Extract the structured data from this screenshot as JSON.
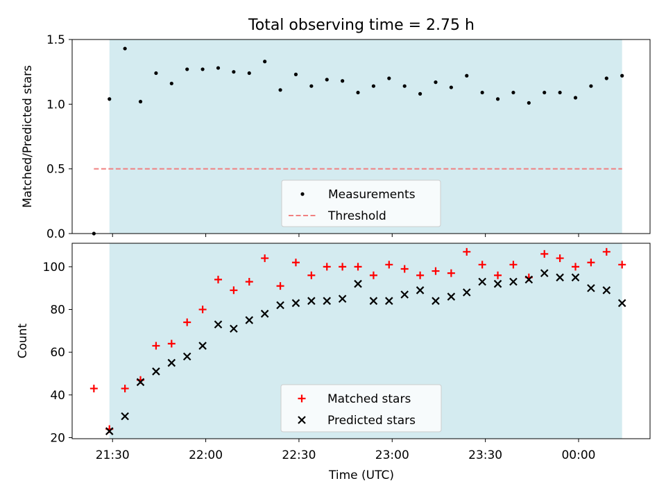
{
  "chart_data": [
    {
      "type": "scatter",
      "title": "Total observing time = 2.75 h",
      "xlabel": "",
      "ylabel": "Matched/Predicted stars",
      "xlim": [
        "21:17",
        "00:23"
      ],
      "ylim": [
        0,
        1.5
      ],
      "yticks": [
        "0.0",
        "0.5",
        "1.0",
        "1.5"
      ],
      "shaded_span": [
        "21:29",
        "00:14"
      ],
      "grid": false,
      "legend_placement": "lower-center",
      "series": [
        {
          "name": "Measurements",
          "marker": "dot",
          "color": "#000000",
          "x": [
            "21:24",
            "21:29",
            "21:34",
            "21:39",
            "21:44",
            "21:49",
            "21:54",
            "21:59",
            "22:04",
            "22:09",
            "22:14",
            "22:19",
            "22:24",
            "22:29",
            "22:34",
            "22:39",
            "22:44",
            "22:49",
            "22:54",
            "22:59",
            "23:04",
            "23:09",
            "23:14",
            "23:19",
            "23:24",
            "23:29",
            "23:34",
            "23:39",
            "23:44",
            "23:49",
            "23:54",
            "23:59",
            "00:04",
            "00:09",
            "00:14"
          ],
          "values": [
            0.0,
            1.04,
            1.43,
            1.02,
            1.24,
            1.16,
            1.27,
            1.27,
            1.28,
            1.25,
            1.24,
            1.33,
            1.11,
            1.23,
            1.14,
            1.19,
            1.18,
            1.09,
            1.14,
            1.2,
            1.14,
            1.08,
            1.17,
            1.13,
            1.22,
            1.09,
            1.04,
            1.09,
            1.01,
            1.09,
            1.09,
            1.05,
            1.14,
            1.2,
            1.22
          ]
        },
        {
          "name": "Threshold",
          "type": "line",
          "style": "dashed",
          "color": "#f08080",
          "x": [
            "21:24",
            "00:14"
          ],
          "values": [
            0.5,
            0.5
          ]
        }
      ]
    },
    {
      "type": "scatter",
      "title": "",
      "xlabel": "Time (UTC)",
      "ylabel": "Count",
      "xlim": [
        "21:17",
        "00:23"
      ],
      "ylim": [
        19.5,
        111
      ],
      "yticks": [
        "20",
        "40",
        "60",
        "80",
        "100"
      ],
      "xticks": [
        "21:30",
        "22:00",
        "22:30",
        "23:00",
        "23:30",
        "00:00"
      ],
      "shaded_span": [
        "21:29",
        "00:14"
      ],
      "grid": false,
      "legend_placement": "lower-center",
      "x": [
        "21:24",
        "21:29",
        "21:34",
        "21:39",
        "21:44",
        "21:49",
        "21:54",
        "21:59",
        "22:04",
        "22:09",
        "22:14",
        "22:19",
        "22:24",
        "22:29",
        "22:34",
        "22:39",
        "22:44",
        "22:49",
        "22:54",
        "22:59",
        "23:04",
        "23:09",
        "23:14",
        "23:19",
        "23:24",
        "23:29",
        "23:34",
        "23:39",
        "23:44",
        "23:49",
        "23:54",
        "23:59",
        "00:04",
        "00:09",
        "00:14"
      ],
      "series": [
        {
          "name": "Matched stars",
          "marker": "plus",
          "color": "#ff0000",
          "values": [
            43,
            24,
            43,
            47,
            63,
            64,
            74,
            80,
            94,
            89,
            93,
            104,
            91,
            102,
            96,
            100,
            100,
            100,
            96,
            101,
            99,
            96,
            98,
            97,
            107,
            101,
            96,
            101,
            95,
            106,
            104,
            100,
            102,
            107,
            101
          ]
        },
        {
          "name": "Predicted stars",
          "marker": "x",
          "color": "#000000",
          "values": [
            null,
            23,
            30,
            46,
            51,
            55,
            58,
            63,
            73,
            71,
            75,
            78,
            82,
            83,
            84,
            84,
            85,
            92,
            84,
            84,
            87,
            89,
            84,
            86,
            88,
            93,
            92,
            93,
            94,
            97,
            95,
            95,
            90,
            89,
            83
          ]
        }
      ]
    }
  ],
  "colors": {
    "shade": "#d4ebf0",
    "threshold": "#f08080",
    "matched": "#ff0000",
    "predicted": "#000000",
    "measurement": "#000000"
  }
}
